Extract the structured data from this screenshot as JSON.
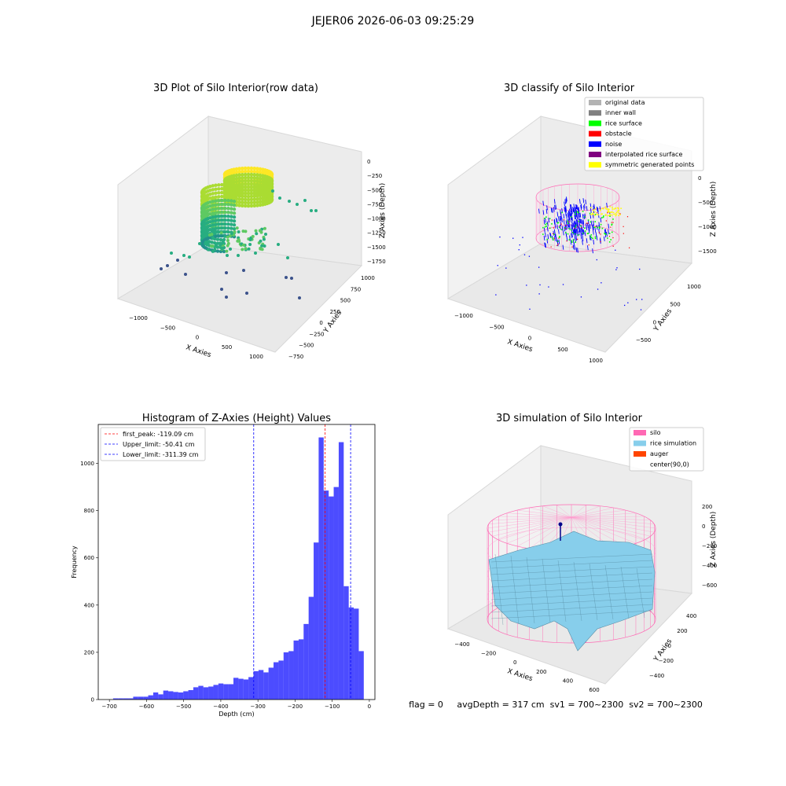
{
  "figure": {
    "suptitle": "JEJER06 2026-06-03 09:25:29",
    "status": "flag = 0     avgDepth = 317 cm  sv1 = 700~2300  sv2 = 700~2300"
  },
  "panels": {
    "raw": {
      "title": "3D Plot of Silo Interior(row data)",
      "xlabel": "X Axies",
      "ylabel": "Y Axies",
      "zlabel": "Z Axies (Depth)",
      "xticks": [
        "−1000",
        "−500",
        "0",
        "500",
        "1000"
      ],
      "yticks": [
        "−750",
        "−500",
        "−250",
        "0",
        "250",
        "500",
        "750",
        "1000"
      ],
      "zticks": [
        "0",
        "−250",
        "−500",
        "−750",
        "−1000",
        "−1250",
        "−1500",
        "−1750"
      ]
    },
    "classify": {
      "title": "3D classify of Silo Interior",
      "xlabel": "X Axies",
      "ylabel": "Y Axies",
      "zlabel": "Z Axies (Depth)",
      "xticks": [
        "−1000",
        "−500",
        "0",
        "500",
        "1000"
      ],
      "yticks": [
        "−500",
        "0",
        "500",
        "1000"
      ],
      "zticks": [
        "0",
        "−500",
        "−1000",
        "−1500"
      ],
      "legend": [
        {
          "label": "original data",
          "color": "#b3b3b3"
        },
        {
          "label": "inner wall",
          "color": "#808080"
        },
        {
          "label": "rice surface",
          "color": "#00ff00"
        },
        {
          "label": "obstacle",
          "color": "#ff0000"
        },
        {
          "label": "noise",
          "color": "#0000ff"
        },
        {
          "label": "interpolated rice surface",
          "color": "#800080"
        },
        {
          "label": "symmetric generated points",
          "color": "#ffff00"
        }
      ]
    },
    "simulation": {
      "title": "3D simulation of Silo Interior",
      "xlabel": "X Axies",
      "ylabel": "Y Axies",
      "zlabel": "Z Axies (Depth)",
      "xticks": [
        "−400",
        "−200",
        "0",
        "200",
        "400",
        "600"
      ],
      "yticks": [
        "−400",
        "−200",
        "0",
        "200",
        "400"
      ],
      "zticks": [
        "200",
        "0",
        "−200",
        "−400",
        "−600"
      ],
      "legend": [
        {
          "label": "silo",
          "color": "#ff69b4"
        },
        {
          "label": "rice simulation",
          "color": "#87ceeb"
        },
        {
          "label": "auger",
          "color": "#ff4500"
        },
        {
          "label": "center(90,0)",
          "color": "#ffffff"
        }
      ]
    }
  },
  "chart_data": [
    {
      "type": "bar",
      "title": "Histogram of Z-Axies (Height) Values",
      "xlabel": "Depth (cm)",
      "ylabel": "Frequency",
      "xlim": [
        -730,
        15
      ],
      "ylim": [
        0,
        1165
      ],
      "xticks": [
        -700,
        -600,
        -500,
        -400,
        -300,
        -200,
        -100,
        0
      ],
      "yticks": [
        0,
        200,
        400,
        600,
        800,
        1000
      ],
      "bar_color": "#0000ff",
      "bin_width": 13.5,
      "bin_start": -690,
      "values": [
        5,
        5,
        5,
        5,
        12,
        12,
        12,
        18,
        30,
        22,
        38,
        35,
        32,
        30,
        35,
        40,
        52,
        58,
        52,
        55,
        62,
        68,
        65,
        65,
        92,
        88,
        85,
        95,
        120,
        125,
        115,
        135,
        158,
        165,
        200,
        205,
        250,
        255,
        320,
        435,
        665,
        1110,
        885,
        860,
        900,
        1090,
        480,
        390,
        385,
        205
      ],
      "lines": [
        {
          "label": "first_peak: -119.09 cm",
          "x": -119.09,
          "color": "#ff0000"
        },
        {
          "label": "Upper_limit: -50.41 cm",
          "x": -50.41,
          "color": "#0000ff"
        },
        {
          "label": "Lower_limit: -311.39 cm",
          "x": -311.39,
          "color": "#0000ff"
        }
      ]
    }
  ]
}
